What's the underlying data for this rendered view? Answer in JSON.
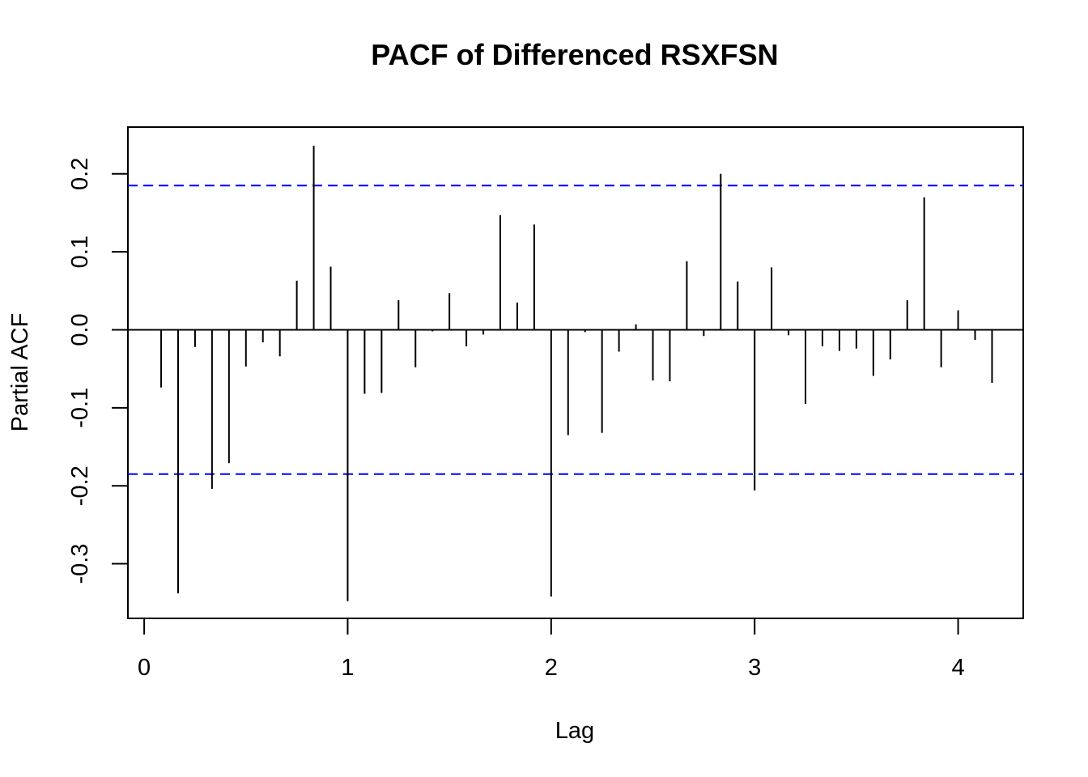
{
  "chart_data": {
    "type": "bar",
    "title": "PACF of Differenced RSXFSN",
    "xlabel": "Lag",
    "ylabel": "Partial ACF",
    "xlim": [
      -0.08,
      4.32
    ],
    "ylim": [
      -0.37,
      0.26
    ],
    "x_ticks": [
      0,
      1,
      2,
      3,
      4
    ],
    "x_tick_labels": [
      "0",
      "1",
      "2",
      "3",
      "4"
    ],
    "y_ticks": [
      -0.3,
      -0.2,
      -0.1,
      0.0,
      0.1,
      0.2
    ],
    "y_tick_labels": [
      "-0.3",
      "-0.2",
      "-0.1",
      "0.0",
      "0.1",
      "0.2"
    ],
    "confidence_bound": 0.185,
    "colors": {
      "bars": "#000000",
      "confidence": "#0000ff",
      "frame": "#000000"
    },
    "lags": [
      0.0833,
      0.1667,
      0.25,
      0.3333,
      0.4167,
      0.5,
      0.5833,
      0.6667,
      0.75,
      0.8333,
      0.9167,
      1.0,
      1.0833,
      1.1667,
      1.25,
      1.3333,
      1.4167,
      1.5,
      1.5833,
      1.6667,
      1.75,
      1.8333,
      1.9167,
      2.0,
      2.0833,
      2.1667,
      2.25,
      2.3333,
      2.4167,
      2.5,
      2.5833,
      2.6667,
      2.75,
      2.8333,
      2.9167,
      3.0,
      3.0833,
      3.1667,
      3.25,
      3.3333,
      3.4167,
      3.5,
      3.5833,
      3.6667,
      3.75,
      3.8333,
      3.9167,
      4.0,
      4.0833,
      4.1667
    ],
    "values": [
      -0.074,
      -0.338,
      -0.022,
      -0.204,
      -0.171,
      -0.047,
      -0.016,
      -0.034,
      0.063,
      0.236,
      0.081,
      -0.348,
      -0.082,
      -0.081,
      0.038,
      -0.048,
      -0.002,
      0.047,
      -0.021,
      -0.006,
      0.147,
      0.035,
      0.135,
      -0.342,
      -0.135,
      -0.003,
      -0.132,
      -0.028,
      0.007,
      -0.065,
      -0.066,
      0.088,
      -0.008,
      0.2,
      0.062,
      -0.206,
      0.08,
      -0.007,
      -0.095,
      -0.021,
      -0.027,
      -0.024,
      -0.059,
      -0.038,
      0.038,
      0.17,
      -0.048,
      0.025,
      -0.013,
      -0.068
    ]
  }
}
